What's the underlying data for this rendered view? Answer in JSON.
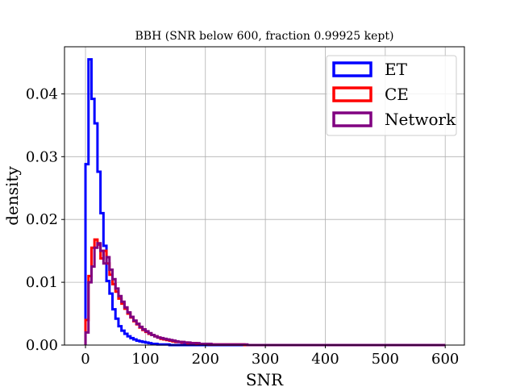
{
  "chart_data": {
    "type": "histogram-step",
    "title": "BBH (SNR below 600, fraction 0.99925 kept)",
    "xlabel": "SNR",
    "ylabel": "density",
    "xlim": [
      -35,
      632
    ],
    "ylim": [
      0,
      0.0475
    ],
    "xticks": [
      0,
      100,
      200,
      300,
      400,
      500,
      600
    ],
    "xtick_labels": [
      "0",
      "100",
      "200",
      "300",
      "400",
      "500",
      "600"
    ],
    "yticks": [
      0,
      0.01,
      0.02,
      0.03,
      0.04
    ],
    "ytick_labels": [
      "0.00",
      "0.01",
      "0.02",
      "0.03",
      "0.04"
    ],
    "grid": true,
    "legend_position": "top-right",
    "bin_width": 5,
    "bin_start": 0,
    "series": [
      {
        "name": "ET",
        "color": "#0000ff",
        "values": [
          0.0288,
          0.0455,
          0.0392,
          0.0353,
          0.0276,
          0.021,
          0.0158,
          0.0102,
          0.0082,
          0.0057,
          0.0042,
          0.003,
          0.0023,
          0.0018,
          0.0014,
          0.0011,
          0.0009,
          0.0007,
          0.0006,
          0.0005,
          0.0004,
          0.0003,
          0.0002,
          0.0002,
          0.0001,
          0.0001,
          0.0001,
          0.0001,
          0.0
        ]
      },
      {
        "name": "CE",
        "color": "#ff0000",
        "values": [
          0.004,
          0.011,
          0.0155,
          0.0168,
          0.016,
          0.0138,
          0.015,
          0.013,
          0.0112,
          0.0097,
          0.0085,
          0.0074,
          0.0066,
          0.0058,
          0.005,
          0.0044,
          0.0038,
          0.0033,
          0.0028,
          0.0024,
          0.0021,
          0.0018,
          0.0016,
          0.0014,
          0.0012,
          0.001,
          0.0009,
          0.0008,
          0.0007,
          0.0006,
          0.0005,
          0.0005,
          0.0004,
          0.0004,
          0.0003,
          0.0003,
          0.0003,
          0.0002,
          0.0002,
          0.0002,
          0.0002,
          0.0001,
          0.0001,
          0.0001,
          0.0001,
          0.0001,
          0.0001,
          0.0001,
          0.0001,
          0.0001,
          0.0001,
          0.0001,
          0.0001,
          0.0
        ]
      },
      {
        "name": "Network",
        "color": "#800080",
        "values": [
          0.002,
          0.01,
          0.0125,
          0.0155,
          0.0162,
          0.015,
          0.013,
          0.014,
          0.012,
          0.0105,
          0.009,
          0.0078,
          0.0069,
          0.006,
          0.0052,
          0.0045,
          0.0039,
          0.0034,
          0.0029,
          0.0025,
          0.0022,
          0.0019,
          0.0016,
          0.0014,
          0.0012,
          0.0011,
          0.001,
          0.0009,
          0.0008,
          0.0007,
          0.0006,
          0.0005,
          0.0005,
          0.0004,
          0.0004,
          0.0003,
          0.0003,
          0.0003,
          0.0002,
          0.0002,
          0.0002,
          0.0002,
          0.0001,
          0.0001,
          0.0001,
          0.0001,
          0.0001,
          0.0001,
          0.0001,
          0.0001,
          0.0001,
          0.0001,
          0.0001,
          0.0001,
          0.0
        ]
      }
    ]
  }
}
